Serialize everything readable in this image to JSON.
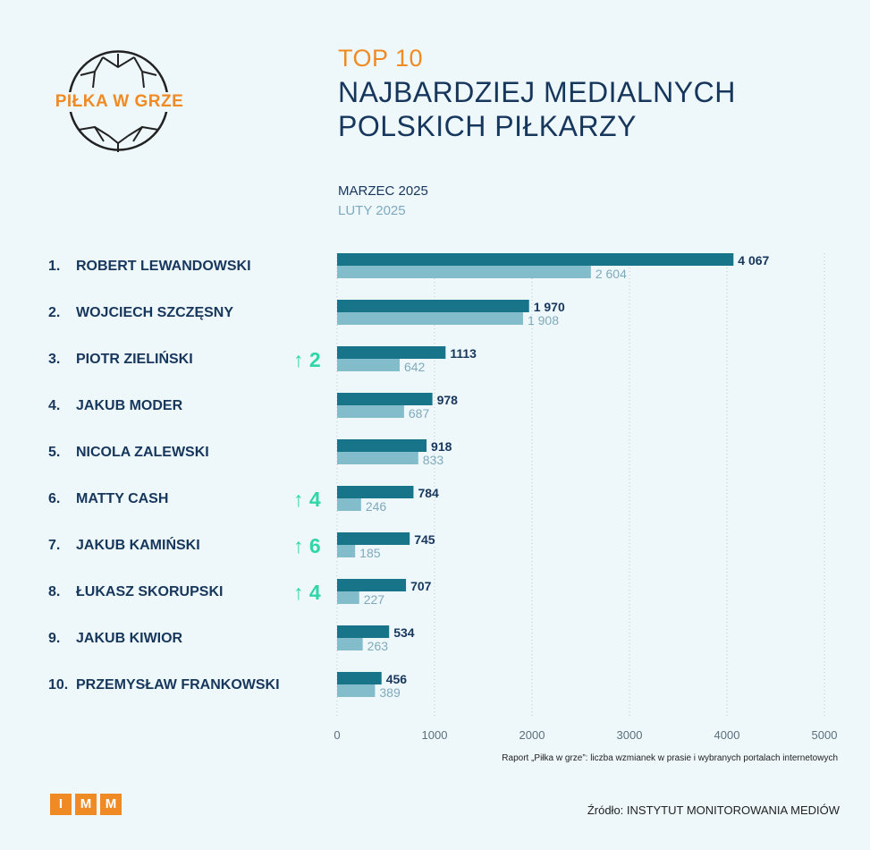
{
  "logo": {
    "text": "PIŁKA W GRZE",
    "icon": "football-icon"
  },
  "title": {
    "top": "TOP 10",
    "line1": "NAJBARDZIEJ MEDIALNYCH",
    "line2": "POLSKICH PIŁKARZY"
  },
  "legend": {
    "current": "MARZEC 2025",
    "previous": "LUTY 2025"
  },
  "colors": {
    "current": "#187489",
    "previous": "#83bccb",
    "accent": "#f08a24",
    "navy": "#17365c",
    "up": "#2fd6a8"
  },
  "chart_data": {
    "type": "bar",
    "orientation": "horizontal",
    "categories": [
      "ROBERT LEWANDOWSKI",
      "WOJCIECH SZCZĘSNY",
      "PIOTR ZIELIŃSKI",
      "JAKUB MODER",
      "NICOLA ZALEWSKI",
      "MATTY CASH",
      "JAKUB KAMIŃSKI",
      "ŁUKASZ SKORUPSKI",
      "JAKUB KIWIOR",
      "PRZEMYSŁAW FRANKOWSKI"
    ],
    "ranks": [
      "1.",
      "2.",
      "3.",
      "4.",
      "5.",
      "6.",
      "7.",
      "8.",
      "9.",
      "10."
    ],
    "changes": [
      "",
      "",
      "2",
      "",
      "",
      "4",
      "6",
      "4",
      "",
      ""
    ],
    "series": [
      {
        "name": "MARZEC 2025",
        "values": [
          4067,
          1970,
          1113,
          978,
          918,
          784,
          745,
          707,
          534,
          456
        ],
        "labels": [
          "4 067",
          "1 970",
          "1113",
          "978",
          "918",
          "784",
          "745",
          "707",
          "534",
          "456"
        ]
      },
      {
        "name": "LUTY 2025",
        "values": [
          2604,
          1908,
          642,
          687,
          833,
          246,
          185,
          227,
          263,
          389
        ],
        "labels": [
          "2 604",
          "1 908",
          "642",
          "687",
          "833",
          "246",
          "185",
          "227",
          "263",
          "389"
        ]
      }
    ],
    "xlim": [
      0,
      5000
    ],
    "ticks": [
      0,
      1000,
      2000,
      3000,
      4000,
      5000
    ],
    "tick_labels": [
      "0",
      "1000",
      "2000",
      "3000",
      "4000",
      "5000"
    ],
    "grid": true
  },
  "note": "Raport „Piłka w grze”: liczba wzmianek w prasie i wybranych portalach internetowych",
  "footer": {
    "brand_letters": [
      "I",
      "M",
      "M"
    ],
    "source": "Źródło: INSTYTUT MONITOROWANIA MEDIÓW"
  }
}
